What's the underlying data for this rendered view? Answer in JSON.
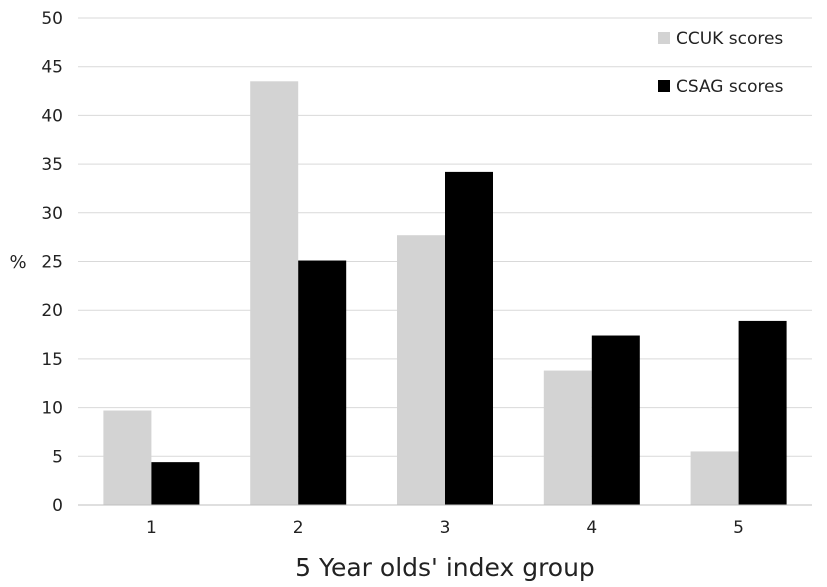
{
  "chart_data": {
    "type": "bar",
    "title": "",
    "xlabel": "5 Year olds' index group",
    "ylabel": "%",
    "categories": [
      "1",
      "2",
      "3",
      "4",
      "5"
    ],
    "ylim": [
      0,
      50
    ],
    "yticks": [
      0,
      5,
      10,
      15,
      20,
      25,
      30,
      35,
      40,
      45,
      50
    ],
    "grid": true,
    "legend_position": "top-right",
    "series": [
      {
        "name": "CCUK scores",
        "color": "#d3d3d3",
        "values": [
          9.7,
          43.5,
          27.7,
          13.8,
          5.5
        ]
      },
      {
        "name": "CSAG scores",
        "color": "#000000",
        "values": [
          4.4,
          25.1,
          34.2,
          17.4,
          18.9
        ]
      }
    ]
  }
}
